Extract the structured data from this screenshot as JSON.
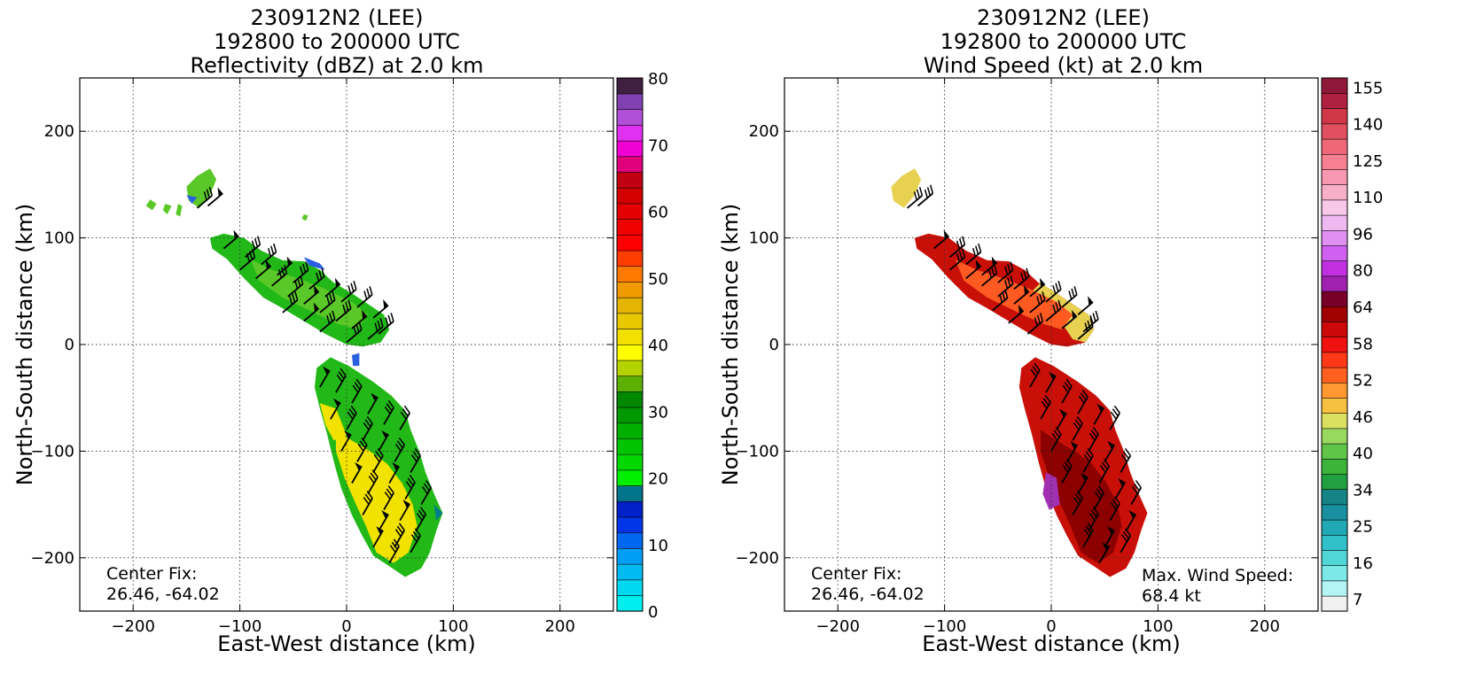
{
  "chart_data": [
    {
      "type": "heatmap",
      "title_lines": [
        "230912N2 (LEE)",
        "192800 to 200000 UTC",
        "Reflectivity (dBZ) at 2.0 km"
      ],
      "xlabel": "East-West distance (km)",
      "ylabel": "North-South distance (km)",
      "xlim": [
        -250,
        250
      ],
      "ylim": [
        -250,
        250
      ],
      "xticks": [
        -200,
        -100,
        0,
        100,
        200
      ],
      "yticks": [
        -200,
        -100,
        0,
        100,
        200
      ],
      "grid": true,
      "annotation": {
        "line1": "Center Fix:",
        "line2": "26.46, -64.02"
      },
      "colorbar": {
        "min": 0,
        "max": 80,
        "step": 2.5,
        "tick_labels": [
          "0",
          "10",
          "20",
          "30",
          "40",
          "50",
          "60",
          "70",
          "80"
        ],
        "colors": [
          "#00eeee",
          "#00d8f0",
          "#00bbf2",
          "#009ef4",
          "#0068f0",
          "#0036e8",
          "#0020c8",
          "#00748a",
          "#00ee00",
          "#00d800",
          "#00c400",
          "#00b000",
          "#009800",
          "#008800",
          "#5cb000",
          "#b4d400",
          "#ffff00",
          "#f2e000",
          "#e8c800",
          "#e4b400",
          "#f09a00",
          "#ff7800",
          "#ff3c00",
          "#ff0000",
          "#f00000",
          "#e40000",
          "#d20000",
          "#c00012",
          "#e0007c",
          "#f000d2",
          "#e030f0",
          "#b050d8",
          "#8040b0",
          "#402040"
        ]
      },
      "scene": {
        "fill_base": "#22b818",
        "fill_mid": "#5ac828",
        "fill_core": "#f2e200",
        "fill_edge": "#2a5fe0",
        "fill_teal": "#007f8c"
      }
    },
    {
      "type": "heatmap",
      "title_lines": [
        "230912N2 (LEE)",
        "192800 to 200000 UTC",
        "Wind Speed (kt) at 2.0 km"
      ],
      "xlabel": "East-West distance (km)",
      "ylabel": "North-South distance (km)",
      "xlim": [
        -250,
        250
      ],
      "ylim": [
        -250,
        250
      ],
      "xticks": [
        -200,
        -100,
        0,
        100,
        200
      ],
      "yticks": [
        -200,
        -100,
        0,
        100,
        200
      ],
      "grid": true,
      "annotation": {
        "line1": "Center Fix:",
        "line2": "26.46, -64.02"
      },
      "max_wind": {
        "line1": "Max. Wind Speed:",
        "line2": "68.4 kt"
      },
      "colorbar": {
        "tick_labels": [
          "7",
          "16",
          "25",
          "34",
          "40",
          "46",
          "52",
          "58",
          "64",
          "80",
          "96",
          "110",
          "125",
          "140",
          "155"
        ],
        "colors": [
          "#f0f0f0",
          "#b4f4f4",
          "#7ce8e8",
          "#50d6d6",
          "#30c0c8",
          "#20a8b4",
          "#1890a0",
          "#148484",
          "#20a040",
          "#3cb43c",
          "#60c448",
          "#98d85c",
          "#dce060",
          "#f8c040",
          "#ff9830",
          "#ff6020",
          "#ff3818",
          "#f01010",
          "#cc0808",
          "#a00000",
          "#780028",
          "#a020b0",
          "#c030e0",
          "#d060f0",
          "#e090f0",
          "#f0b8f0",
          "#f8c8e8",
          "#f8b0c8",
          "#f898b0",
          "#f88090",
          "#f06878",
          "#e05060",
          "#d03848",
          "#b02040",
          "#901838"
        ]
      },
      "scene": {
        "fill_base": "#c81008",
        "fill_mid": "#ff5a22",
        "fill_core": "#8c0000",
        "fill_light": "#e8d050",
        "fill_purple": "#a030b0"
      }
    }
  ]
}
